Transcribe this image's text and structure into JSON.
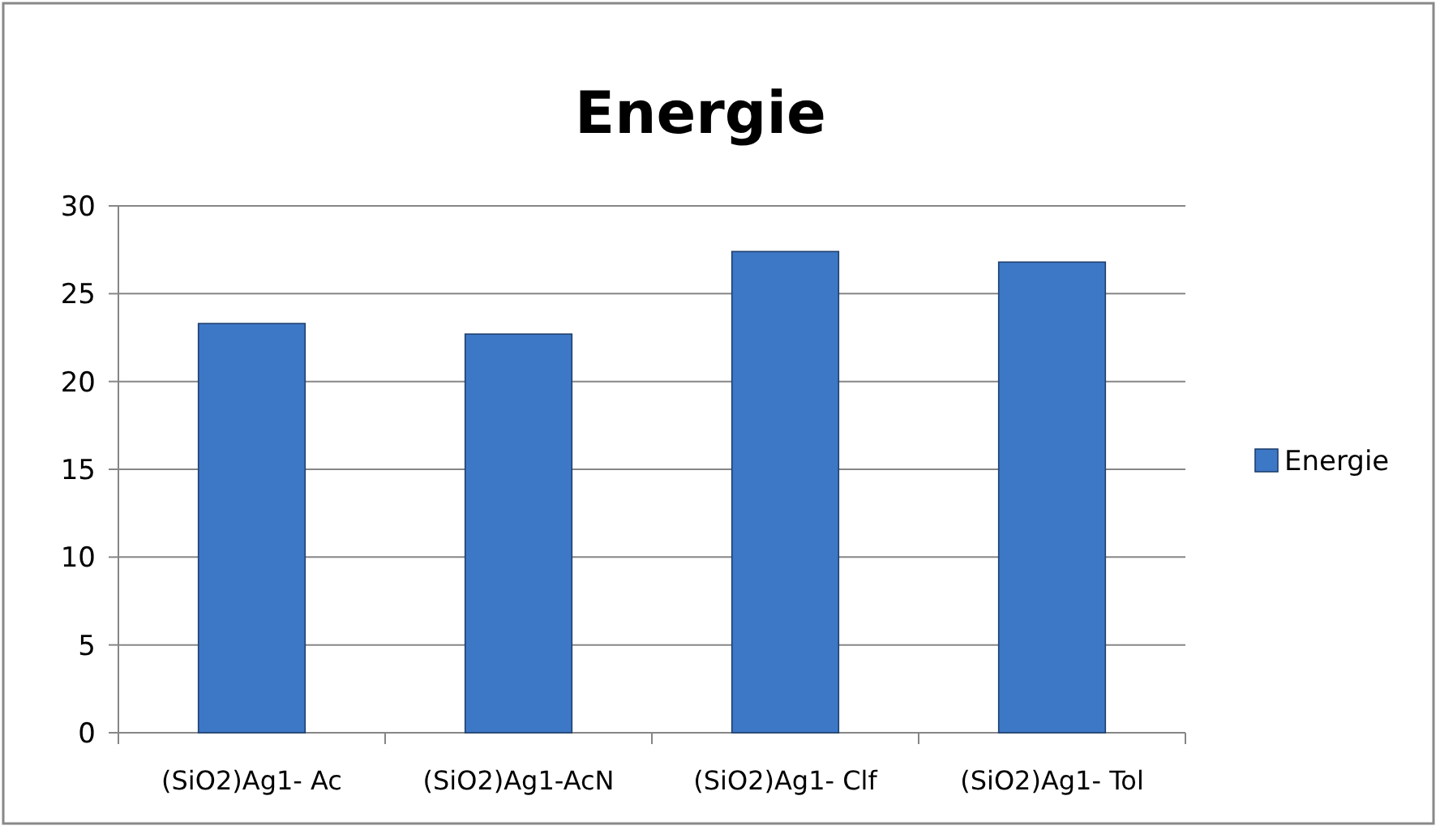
{
  "chart_data": {
    "type": "bar",
    "title": "Energie",
    "categories": [
      "(SiO2)Ag1- Ac",
      "(SiO2)Ag1-AcN",
      "(SiO2)Ag1- Clf",
      "(SiO2)Ag1- Tol"
    ],
    "series": [
      {
        "name": "Energie",
        "color": "#3d78c6",
        "values": [
          23.3,
          22.7,
          27.4,
          26.8
        ]
      }
    ],
    "ylim": [
      0,
      30
    ],
    "yticks": [
      0,
      5,
      10,
      15,
      20,
      25,
      30
    ],
    "grid": "y",
    "legend": "right"
  }
}
